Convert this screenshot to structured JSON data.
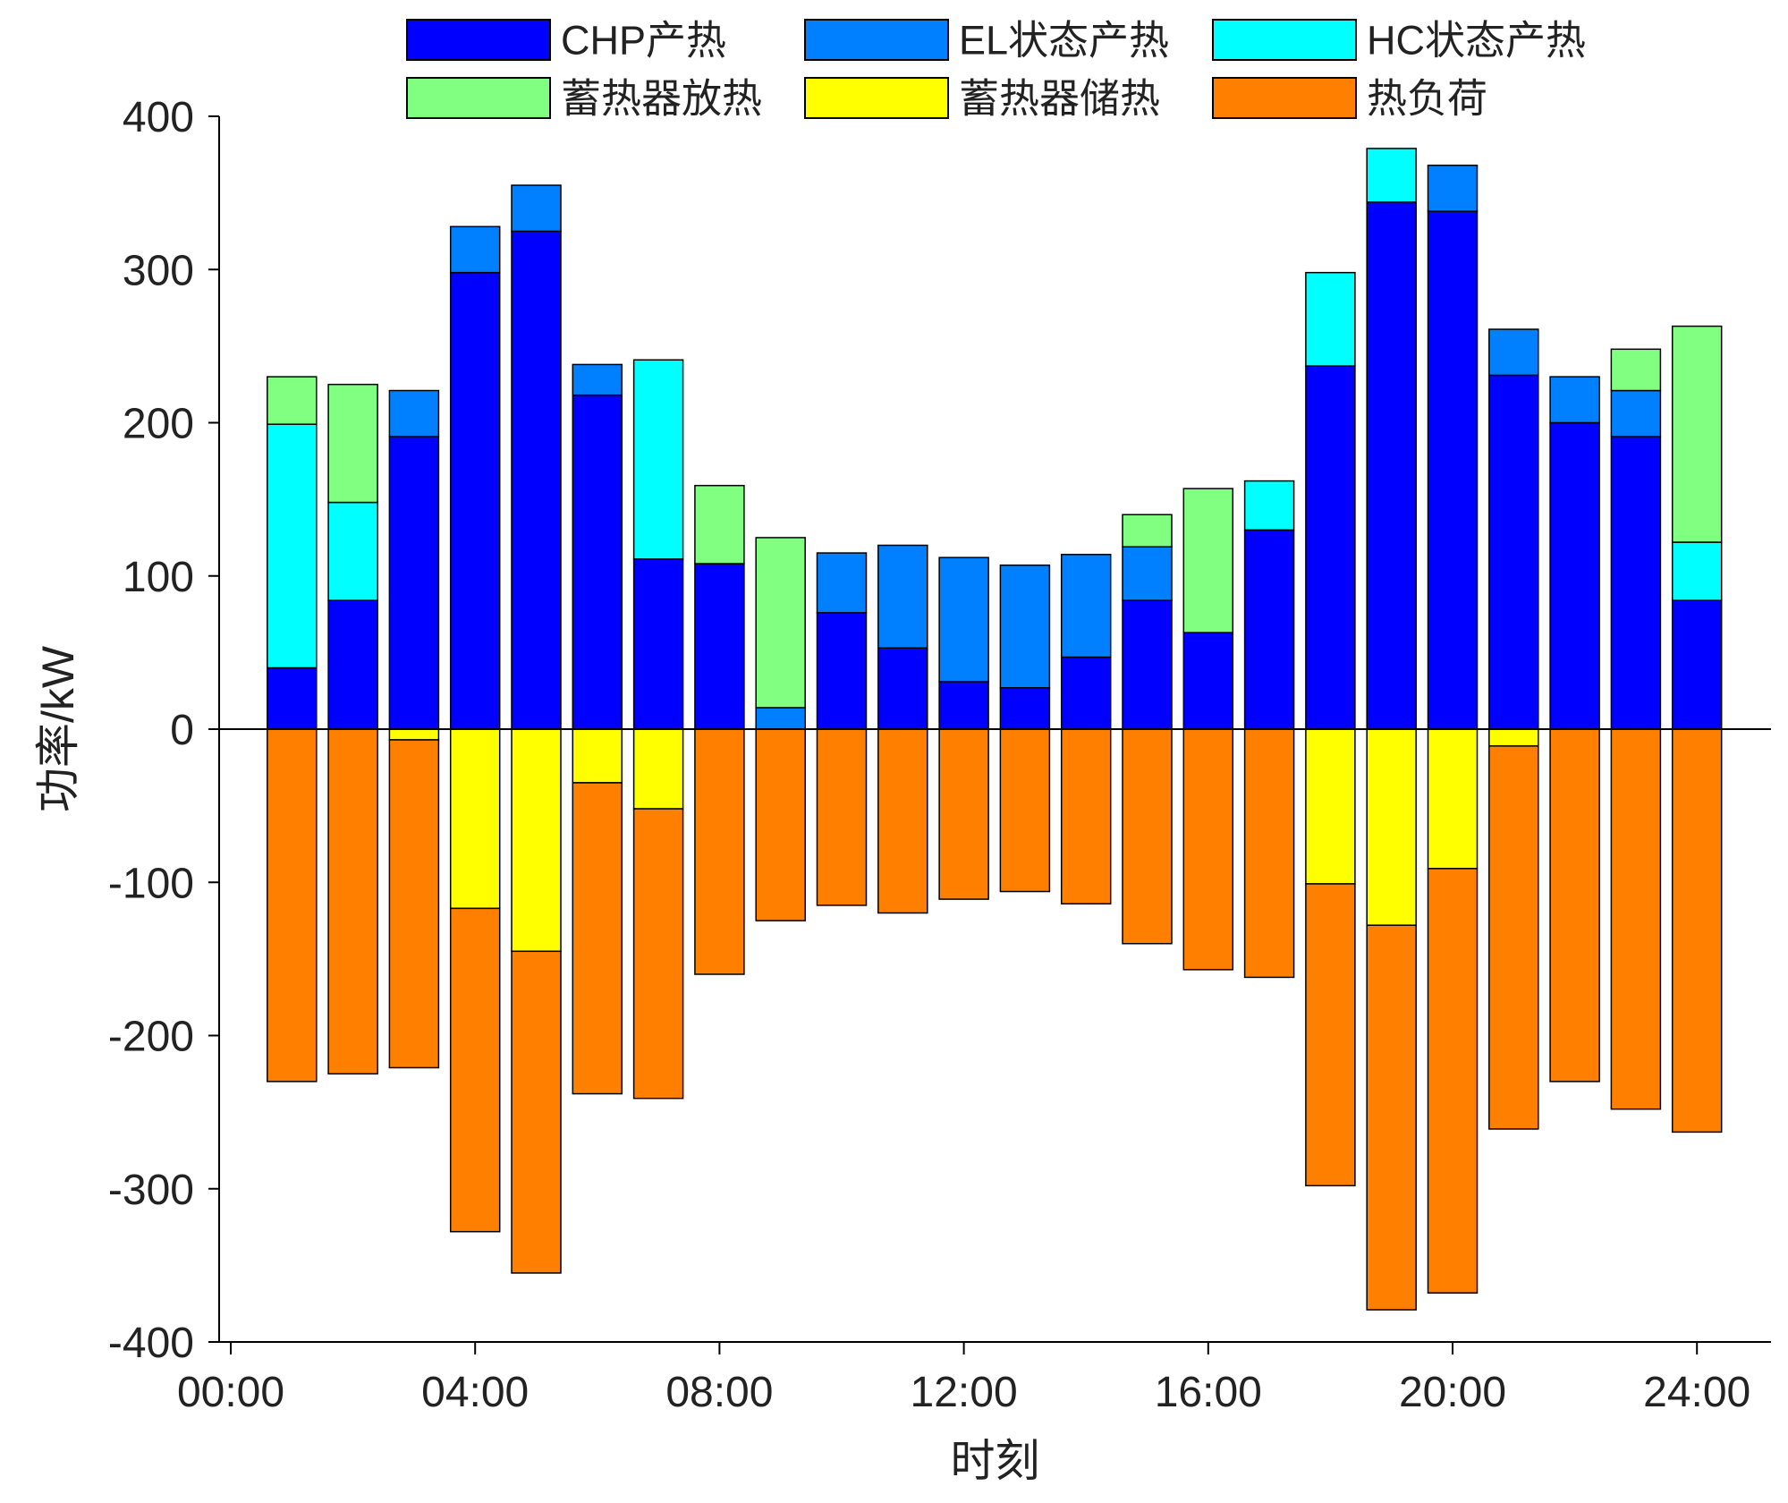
{
  "chart_data": {
    "type": "bar",
    "stacked": true,
    "title": "",
    "xlabel": "时刻",
    "ylabel": "功率/kW",
    "ylim": [
      -400,
      400
    ],
    "yticks": [
      400,
      300,
      200,
      100,
      0,
      -100,
      -200,
      -300,
      -400
    ],
    "xlim": [
      0,
      24
    ],
    "xticks": [
      "00:00",
      "04:00",
      "08:00",
      "12:00",
      "16:00",
      "20:00",
      "24:00"
    ],
    "x": [
      1,
      2,
      3,
      4,
      5,
      6,
      7,
      8,
      9,
      10,
      11,
      12,
      13,
      14,
      15,
      16,
      17,
      18,
      19,
      20,
      21,
      22,
      23,
      24
    ],
    "series": [
      {
        "name": "CHP产热",
        "color": "#0000ff",
        "values": [
          40,
          84,
          191,
          298,
          325,
          218,
          111,
          108,
          0,
          76,
          53,
          31,
          27,
          47,
          84,
          63,
          130,
          237,
          344,
          338,
          231,
          200,
          191,
          84
        ]
      },
      {
        "name": "EL状态产热",
        "color": "#0080ff",
        "values": [
          0,
          0,
          30,
          30,
          30,
          20,
          0,
          0,
          14,
          39,
          67,
          81,
          80,
          67,
          35,
          0,
          0,
          0,
          0,
          30,
          30,
          30,
          30,
          0
        ]
      },
      {
        "name": "HC状态产热",
        "color": "#00ffff",
        "values": [
          159,
          64,
          0,
          0,
          0,
          0,
          130,
          0,
          0,
          0,
          0,
          0,
          0,
          0,
          0,
          0,
          32,
          61,
          35,
          0,
          0,
          0,
          0,
          38
        ]
      },
      {
        "name": "蓄热器放热",
        "color": "#80ff80",
        "values": [
          31,
          77,
          0,
          0,
          0,
          0,
          0,
          51,
          111,
          0,
          0,
          0,
          0,
          0,
          21,
          94,
          0,
          0,
          0,
          0,
          0,
          0,
          27,
          141
        ]
      },
      {
        "name": "蓄热器储热",
        "color": "#ffff00",
        "values": [
          0,
          0,
          -7,
          -117,
          -145,
          -35,
          -52,
          0,
          0,
          0,
          0,
          0,
          0,
          0,
          0,
          0,
          0,
          -101,
          -128,
          -91,
          -11,
          0,
          0,
          0
        ]
      },
      {
        "name": "热负荷",
        "color": "#ff8000",
        "values": [
          -230,
          -225,
          -214,
          -211,
          -210,
          -203,
          -189,
          -160,
          -125,
          -115,
          -120,
          -111,
          -106,
          -114,
          -140,
          -157,
          -162,
          -197,
          -251,
          -277,
          -250,
          -230,
          -248,
          -263
        ]
      }
    ],
    "legend": {
      "position": "top",
      "columns": 3
    }
  }
}
